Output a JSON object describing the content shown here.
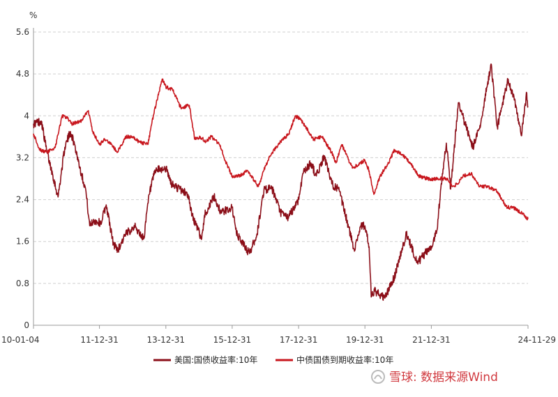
{
  "chart_data": {
    "type": "line",
    "y_unit": "%",
    "ylim": [
      0,
      5.6
    ],
    "yticks": [
      "0",
      "0.8",
      "1.6",
      "2.4",
      "3.2",
      "4",
      "4.8",
      "5.6"
    ],
    "x_tick_labels": [
      "10-01-04",
      "11-12-31",
      "13-12-31",
      "15-12-31",
      "17-12-31",
      "19-12-31",
      "21-12-31",
      "24-11-29"
    ],
    "x_tick_dates": [
      "2010-01-04",
      "2011-12-31",
      "2013-12-31",
      "2015-12-31",
      "2017-12-31",
      "2019-12-31",
      "2021-12-31",
      "2024-11-29"
    ],
    "grid": true,
    "legend_position": "bottom-center",
    "series": [
      {
        "name": "美国:国债收益率:10年",
        "color": "#8b0e18",
        "points": [
          [
            "2010-01-04",
            3.85
          ],
          [
            "2010-04-01",
            3.9
          ],
          [
            "2010-06-01",
            3.3
          ],
          [
            "2010-08-01",
            2.9
          ],
          [
            "2010-10-01",
            2.45
          ],
          [
            "2010-12-15",
            3.4
          ],
          [
            "2011-02-15",
            3.7
          ],
          [
            "2011-04-01",
            3.45
          ],
          [
            "2011-06-15",
            2.9
          ],
          [
            "2011-08-01",
            2.6
          ],
          [
            "2011-09-15",
            1.9
          ],
          [
            "2011-11-01",
            2.0
          ],
          [
            "2012-01-15",
            1.95
          ],
          [
            "2012-03-15",
            2.3
          ],
          [
            "2012-06-01",
            1.55
          ],
          [
            "2012-07-25",
            1.45
          ],
          [
            "2012-10-01",
            1.7
          ],
          [
            "2013-01-15",
            1.9
          ],
          [
            "2013-05-01",
            1.65
          ],
          [
            "2013-07-01",
            2.5
          ],
          [
            "2013-09-05",
            2.95
          ],
          [
            "2013-12-31",
            3.0
          ],
          [
            "2014-03-01",
            2.7
          ],
          [
            "2014-06-01",
            2.6
          ],
          [
            "2014-09-01",
            2.5
          ],
          [
            "2014-10-15",
            2.1
          ],
          [
            "2015-01-30",
            1.65
          ],
          [
            "2015-03-01",
            2.1
          ],
          [
            "2015-06-15",
            2.45
          ],
          [
            "2015-09-01",
            2.15
          ],
          [
            "2015-12-31",
            2.25
          ],
          [
            "2016-02-15",
            1.75
          ],
          [
            "2016-07-08",
            1.37
          ],
          [
            "2016-10-01",
            1.75
          ],
          [
            "2016-12-15",
            2.6
          ],
          [
            "2017-03-15",
            2.6
          ],
          [
            "2017-06-15",
            2.15
          ],
          [
            "2017-09-07",
            2.05
          ],
          [
            "2017-12-31",
            2.4
          ],
          [
            "2018-02-15",
            2.9
          ],
          [
            "2018-05-15",
            3.1
          ],
          [
            "2018-07-15",
            2.85
          ],
          [
            "2018-10-08",
            3.23
          ],
          [
            "2018-12-31",
            2.7
          ],
          [
            "2019-03-15",
            2.6
          ],
          [
            "2019-06-01",
            2.1
          ],
          [
            "2019-09-03",
            1.45
          ],
          [
            "2019-11-15",
            1.9
          ],
          [
            "2019-12-31",
            1.9
          ],
          [
            "2020-02-15",
            1.5
          ],
          [
            "2020-03-09",
            0.54
          ],
          [
            "2020-04-15",
            0.65
          ],
          [
            "2020-08-04",
            0.52
          ],
          [
            "2020-11-15",
            0.9
          ],
          [
            "2021-03-31",
            1.74
          ],
          [
            "2021-08-01",
            1.2
          ],
          [
            "2021-12-31",
            1.51
          ],
          [
            "2022-03-01",
            1.8
          ],
          [
            "2022-05-01",
            2.9
          ],
          [
            "2022-06-14",
            3.48
          ],
          [
            "2022-08-01",
            2.6
          ],
          [
            "2022-10-24",
            4.25
          ],
          [
            "2022-12-31",
            3.88
          ],
          [
            "2023-04-01",
            3.4
          ],
          [
            "2023-06-15",
            3.75
          ],
          [
            "2023-10-19",
            4.99
          ],
          [
            "2023-12-27",
            3.79
          ],
          [
            "2024-04-25",
            4.7
          ],
          [
            "2024-07-01",
            4.3
          ],
          [
            "2024-09-16",
            3.62
          ],
          [
            "2024-11-15",
            4.44
          ],
          [
            "2024-11-29",
            4.18
          ]
        ]
      },
      {
        "name": "中债国债到期收益率:10年",
        "color": "#c8161d",
        "points": [
          [
            "2010-01-04",
            3.66
          ],
          [
            "2010-03-15",
            3.35
          ],
          [
            "2010-06-01",
            3.3
          ],
          [
            "2010-07-15",
            3.35
          ],
          [
            "2010-09-01",
            3.4
          ],
          [
            "2010-11-15",
            4.0
          ],
          [
            "2011-01-15",
            3.95
          ],
          [
            "2011-03-01",
            3.85
          ],
          [
            "2011-06-15",
            3.9
          ],
          [
            "2011-09-01",
            4.1
          ],
          [
            "2011-10-15",
            3.7
          ],
          [
            "2011-12-31",
            3.45
          ],
          [
            "2012-03-01",
            3.55
          ],
          [
            "2012-05-15",
            3.45
          ],
          [
            "2012-07-15",
            3.3
          ],
          [
            "2012-10-15",
            3.6
          ],
          [
            "2012-12-31",
            3.6
          ],
          [
            "2013-03-15",
            3.5
          ],
          [
            "2013-06-15",
            3.45
          ],
          [
            "2013-08-15",
            4.0
          ],
          [
            "2013-11-20",
            4.7
          ],
          [
            "2013-12-31",
            4.55
          ],
          [
            "2014-03-15",
            4.5
          ],
          [
            "2014-06-15",
            4.15
          ],
          [
            "2014-09-15",
            4.2
          ],
          [
            "2014-11-15",
            3.55
          ],
          [
            "2015-01-15",
            3.6
          ],
          [
            "2015-03-15",
            3.5
          ],
          [
            "2015-05-15",
            3.6
          ],
          [
            "2015-08-15",
            3.45
          ],
          [
            "2015-10-15",
            3.15
          ],
          [
            "2015-12-31",
            2.85
          ],
          [
            "2016-03-15",
            2.85
          ],
          [
            "2016-06-15",
            2.95
          ],
          [
            "2016-10-15",
            2.65
          ],
          [
            "2016-12-31",
            3.05
          ],
          [
            "2017-03-15",
            3.3
          ],
          [
            "2017-06-15",
            3.5
          ],
          [
            "2017-09-15",
            3.65
          ],
          [
            "2017-11-22",
            3.99
          ],
          [
            "2018-01-15",
            3.95
          ],
          [
            "2018-03-15",
            3.8
          ],
          [
            "2018-06-15",
            3.55
          ],
          [
            "2018-09-15",
            3.6
          ],
          [
            "2018-12-31",
            3.3
          ],
          [
            "2019-02-15",
            3.1
          ],
          [
            "2019-04-20",
            3.45
          ],
          [
            "2019-08-15",
            3.0
          ],
          [
            "2019-12-31",
            3.15
          ],
          [
            "2020-02-15",
            2.95
          ],
          [
            "2020-04-07",
            2.5
          ],
          [
            "2020-06-15",
            2.85
          ],
          [
            "2020-09-15",
            3.1
          ],
          [
            "2020-11-20",
            3.35
          ],
          [
            "2021-02-15",
            3.25
          ],
          [
            "2021-05-15",
            3.1
          ],
          [
            "2021-08-15",
            2.85
          ],
          [
            "2021-12-31",
            2.78
          ],
          [
            "2022-03-15",
            2.8
          ],
          [
            "2022-06-15",
            2.8
          ],
          [
            "2022-08-22",
            2.65
          ],
          [
            "2022-10-15",
            2.7
          ],
          [
            "2022-12-15",
            2.85
          ],
          [
            "2023-03-15",
            2.9
          ],
          [
            "2023-06-15",
            2.65
          ],
          [
            "2023-09-15",
            2.65
          ],
          [
            "2023-12-31",
            2.55
          ],
          [
            "2024-02-15",
            2.4
          ],
          [
            "2024-04-15",
            2.25
          ],
          [
            "2024-06-15",
            2.25
          ],
          [
            "2024-09-15",
            2.15
          ],
          [
            "2024-11-29",
            2.03
          ]
        ]
      }
    ]
  },
  "watermark": {
    "text": "雪球: 数据来源Wind"
  }
}
